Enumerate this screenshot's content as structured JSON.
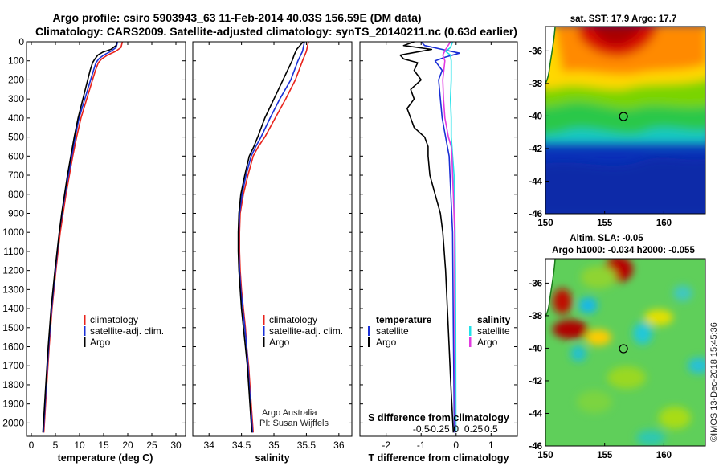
{
  "header": {
    "title_line1": "Argo profile: csiro 5903943_63 11-Feb-2014 40.03S 156.59E (DM data)",
    "title_line2": "Climatology: CARS2009. Satellite-adjusted climatology: synTS_20140211.nc (0.63d earlier)"
  },
  "colors": {
    "climatology": "#e8231c",
    "satellite": "#1a2fd6",
    "argo": "#000000",
    "sat_salinity": "#22e0e8",
    "argo_salinity": "#e23ae0"
  },
  "chart_data": [
    {
      "type": "line",
      "id": "temperature",
      "xlabel": "temperature (deg C)",
      "ylabel": "",
      "xlim": [
        -1,
        32
      ],
      "ylim": [
        2070,
        0
      ],
      "xticks": [
        0,
        5,
        10,
        15,
        20,
        25,
        30
      ],
      "yticks": [
        0,
        100,
        200,
        300,
        400,
        500,
        600,
        700,
        800,
        900,
        1000,
        1100,
        1200,
        1300,
        1400,
        1500,
        1600,
        1700,
        1800,
        1900,
        2000
      ],
      "legend": [
        "climatology",
        "satellite-adj. clim.",
        "Argo"
      ],
      "series": [
        {
          "name": "climatology",
          "color": "#e8231c",
          "depth": [
            0,
            30,
            50,
            70,
            90,
            110,
            150,
            200,
            300,
            400,
            500,
            600,
            700,
            800,
            900,
            1000,
            1200,
            1400,
            1600,
            1800,
            2050
          ],
          "values": [
            18.9,
            18.6,
            17.5,
            15.8,
            14.6,
            13.9,
            13.3,
            12.7,
            11.5,
            10.3,
            9.4,
            8.6,
            7.9,
            7.2,
            6.6,
            6.0,
            5.1,
            4.3,
            3.7,
            3.2,
            2.6
          ]
        },
        {
          "name": "satellite-adj. clim.",
          "color": "#1a2fd6",
          "depth": [
            0,
            30,
            50,
            70,
            90,
            110,
            150,
            200,
            300,
            400,
            500,
            600,
            700,
            800,
            900,
            1000,
            1200,
            1400,
            1600,
            1800,
            2050
          ],
          "values": [
            17.9,
            17.6,
            16.5,
            15.0,
            14.0,
            13.4,
            12.9,
            12.3,
            11.1,
            9.9,
            9.1,
            8.4,
            7.7,
            7.0,
            6.4,
            5.8,
            5.0,
            4.2,
            3.6,
            3.1,
            2.5
          ]
        },
        {
          "name": "Argo",
          "color": "#000000",
          "depth": [
            0,
            20,
            40,
            55,
            70,
            90,
            110,
            150,
            200,
            300,
            400,
            500,
            600,
            700,
            800,
            900,
            1000,
            1200,
            1400,
            1600,
            1800,
            2050
          ],
          "values": [
            17.7,
            17.6,
            16.5,
            14.8,
            13.8,
            13.2,
            12.7,
            12.2,
            11.7,
            10.7,
            9.7,
            8.9,
            8.2,
            7.5,
            6.9,
            6.3,
            5.8,
            4.9,
            4.1,
            3.5,
            3.0,
            2.4
          ]
        }
      ]
    },
    {
      "type": "line",
      "id": "salinity",
      "xlabel": "salinity",
      "xlim": [
        33.75,
        36.2
      ],
      "ylim": [
        2070,
        0
      ],
      "xticks": [
        34,
        34.5,
        35,
        35.5,
        36
      ],
      "xticklabels": [
        "34",
        "34.5",
        "35",
        "35.5",
        "36"
      ],
      "legend": [
        "climatology",
        "satellite-adj. clim.",
        "Argo"
      ],
      "annotations": [
        "Argo Australia",
        "PI: Susan Wijffels"
      ],
      "series": [
        {
          "name": "climatology",
          "color": "#e8231c",
          "depth": [
            0,
            50,
            100,
            200,
            300,
            400,
            500,
            550,
            600,
            700,
            800,
            900,
            1000,
            1100,
            1200,
            1300,
            1400,
            1500,
            1600,
            1700,
            1800,
            1900,
            2050
          ],
          "values": [
            35.53,
            35.5,
            35.44,
            35.33,
            35.18,
            35.02,
            34.86,
            34.76,
            34.68,
            34.6,
            34.53,
            34.48,
            34.47,
            34.47,
            34.48,
            34.5,
            34.53,
            34.56,
            34.58,
            34.61,
            34.63,
            34.65,
            34.68
          ]
        },
        {
          "name": "satellite-adj. clim.",
          "color": "#1a2fd6",
          "depth": [
            0,
            50,
            100,
            200,
            300,
            400,
            500,
            550,
            600,
            700,
            800,
            900,
            1000,
            1100,
            1200,
            1300,
            1400,
            1500,
            1600,
            1700,
            1800,
            1900,
            2050
          ],
          "values": [
            35.47,
            35.44,
            35.37,
            35.26,
            35.09,
            34.94,
            34.8,
            34.72,
            34.65,
            34.57,
            34.51,
            34.47,
            34.46,
            34.46,
            34.47,
            34.49,
            34.52,
            34.55,
            34.58,
            34.6,
            34.62,
            34.64,
            34.67
          ]
        },
        {
          "name": "Argo",
          "color": "#000000",
          "depth": [
            0,
            40,
            70,
            100,
            200,
            300,
            400,
            500,
            550,
            600,
            700,
            800,
            900,
            1000,
            1100,
            1200,
            1300,
            1400,
            1500,
            1600,
            1700,
            1800,
            1900,
            2050
          ],
          "values": [
            35.45,
            35.35,
            35.31,
            35.28,
            35.14,
            35.0,
            34.86,
            34.75,
            34.69,
            34.62,
            34.55,
            34.49,
            34.46,
            34.45,
            34.45,
            34.46,
            34.48,
            34.5,
            34.53,
            34.56,
            34.59,
            34.61,
            34.63,
            34.66
          ]
        }
      ]
    },
    {
      "type": "line",
      "id": "difference",
      "xlabel": "T difference from climatology",
      "xlabel2": "S difference from climatology",
      "xlim": [
        -2.75,
        1.75
      ],
      "ylim": [
        2070,
        0
      ],
      "xticks": [
        -2,
        -1,
        0,
        1
      ],
      "xticklabels": [
        "-2",
        "-1",
        "0",
        "1"
      ],
      "xticks2": [
        -0.5,
        -0.25,
        0,
        0.25,
        0.5
      ],
      "xticklabels2": [
        "-0.5",
        "-0.25",
        "0",
        "0.25",
        "0.5"
      ],
      "legend_left_title": "temperature",
      "legend_left": [
        "satellite",
        "Argo"
      ],
      "legend_right_title": "salinity",
      "legend_right": [
        "satellite",
        "Argo"
      ],
      "series": [
        {
          "name": "temperature satellite",
          "color": "#1a2fd6",
          "depth": [
            0,
            20,
            40,
            60,
            80,
            100,
            150,
            200,
            300,
            400,
            500,
            600,
            800,
            1000,
            1500,
            2050
          ],
          "values": [
            -1.0,
            -0.9,
            -0.4,
            0.1,
            -0.3,
            -0.6,
            -0.4,
            -0.5,
            -0.45,
            -0.4,
            -0.3,
            -0.2,
            -0.15,
            -0.1,
            -0.08,
            -0.05
          ]
        },
        {
          "name": "temperature Argo",
          "color": "#000000",
          "depth": [
            0,
            20,
            40,
            60,
            70,
            90,
            110,
            150,
            200,
            250,
            300,
            350,
            400,
            450,
            500,
            550,
            600,
            700,
            800,
            900,
            1000,
            1200,
            1400,
            1600,
            1800,
            2050
          ],
          "values": [
            -1.2,
            -1.5,
            -0.7,
            -1.3,
            -1.6,
            -1.5,
            -1.1,
            -1.2,
            -1.0,
            -1.3,
            -1.2,
            -1.4,
            -1.3,
            -1.2,
            -0.9,
            -0.8,
            -0.8,
            -0.75,
            -0.6,
            -0.45,
            -0.38,
            -0.3,
            -0.25,
            -0.2,
            -0.15,
            -0.08
          ]
        },
        {
          "name": "salinity satellite",
          "color": "#22e0e8",
          "depth": [
            0,
            30,
            50,
            70,
            100,
            200,
            300,
            400,
            500,
            550,
            600,
            700,
            800,
            1000,
            1200,
            1500,
            2050
          ],
          "values": [
            -0.05,
            -0.08,
            -0.15,
            -0.08,
            -0.07,
            -0.07,
            -0.08,
            -0.07,
            -0.07,
            -0.06,
            -0.05,
            -0.03,
            -0.025,
            -0.015,
            -0.01,
            -0.007,
            -0.003
          ]
        },
        {
          "name": "salinity Argo",
          "color": "#e23ae0",
          "depth": [
            0,
            40,
            70,
            100,
            200,
            300,
            400,
            500,
            550,
            600,
            700,
            800,
            1000,
            1200,
            1500,
            2050
          ],
          "values": [
            -0.08,
            -0.15,
            -0.19,
            -0.16,
            -0.19,
            -0.18,
            -0.16,
            -0.11,
            -0.07,
            -0.06,
            -0.05,
            -0.04,
            -0.02,
            -0.02,
            -0.02,
            -0.015
          ]
        }
      ]
    },
    {
      "type": "heatmap",
      "id": "sst_map",
      "title": "sat. SST: 17.9 Argo: 17.7",
      "xlim": [
        150,
        163.5
      ],
      "ylim": [
        -46,
        -34.5
      ],
      "xticks": [
        150,
        155,
        160
      ],
      "yticks": [
        -36,
        -38,
        -40,
        -42,
        -44,
        -46
      ],
      "marker": {
        "lon": 156.59,
        "lat": -40.03
      }
    },
    {
      "type": "heatmap",
      "id": "sla_map",
      "title_line1": "Altim. SLA: -0.05",
      "title_line2": "Argo h1000: -0.034 h2000: -0.055",
      "xlim": [
        150,
        163.5
      ],
      "ylim": [
        -46,
        -34.5
      ],
      "xticks": [
        150,
        155,
        160
      ],
      "yticks": [
        -36,
        -38,
        -40,
        -42,
        -44,
        -46
      ],
      "marker": {
        "lon": 156.59,
        "lat": -40.03
      }
    }
  ],
  "credit": "©IMOS 13-Dec-2018 15:45:36"
}
